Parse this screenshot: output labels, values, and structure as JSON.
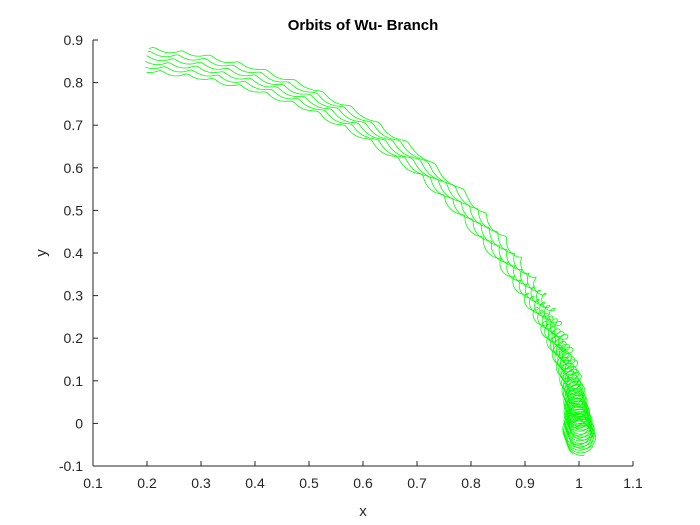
{
  "chart_data": {
    "type": "line",
    "title": "Orbits of Wu- Branch",
    "xlabel": "x",
    "ylabel": "y",
    "xlim": [
      0.1,
      1.1
    ],
    "ylim": [
      -0.1,
      0.9
    ],
    "xticks": [
      "0.1",
      "0.2",
      "0.3",
      "0.4",
      "0.5",
      "0.6",
      "0.7",
      "0.8",
      "0.9",
      "1",
      "1.1"
    ],
    "yticks": [
      "-0.1",
      "0",
      "0.1",
      "0.2",
      "0.3",
      "0.4",
      "0.5",
      "0.6",
      "0.7",
      "0.8",
      "0.9"
    ],
    "grid": false,
    "box": "off",
    "line_color": "#00ff00",
    "series": [
      {
        "description_points": [
          [
            0.2,
            0.88
          ],
          [
            0.3,
            0.865
          ],
          [
            0.4,
            0.835
          ],
          [
            0.5,
            0.79
          ],
          [
            0.6,
            0.725
          ],
          [
            0.7,
            0.64
          ],
          [
            0.8,
            0.525
          ],
          [
            0.87,
            0.42
          ],
          [
            0.92,
            0.33
          ],
          [
            0.95,
            0.26
          ],
          [
            0.97,
            0.2
          ],
          [
            0.985,
            0.14
          ],
          [
            0.995,
            0.08
          ],
          [
            1.0,
            0.03
          ],
          [
            1.005,
            -0.01
          ],
          [
            1.005,
            -0.045
          ]
        ]
      },
      {
        "description_points": [
          [
            0.2,
            0.828
          ],
          [
            0.3,
            0.812
          ],
          [
            0.4,
            0.782
          ],
          [
            0.5,
            0.738
          ],
          [
            0.6,
            0.672
          ],
          [
            0.7,
            0.588
          ],
          [
            0.78,
            0.49
          ],
          [
            0.85,
            0.385
          ],
          [
            0.9,
            0.3
          ],
          [
            0.935,
            0.23
          ],
          [
            0.96,
            0.17
          ],
          [
            0.978,
            0.11
          ],
          [
            0.99,
            0.055
          ],
          [
            0.995,
            0.01
          ],
          [
            0.995,
            -0.03
          ]
        ]
      }
    ]
  }
}
